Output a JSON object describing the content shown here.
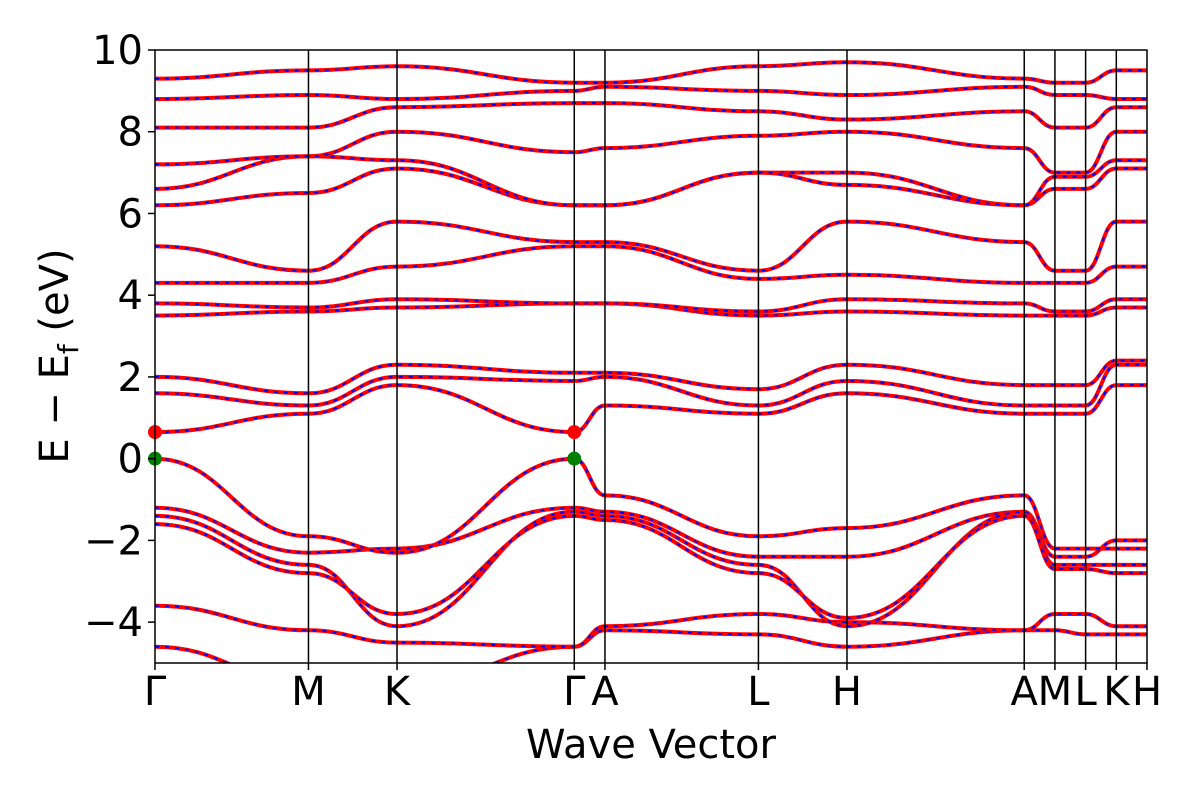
{
  "chart_data": {
    "type": "line",
    "title": "",
    "xlabel": "Wave Vector",
    "ylabel_main": "E − E",
    "ylabel_sub": "f",
    "ylabel_unit": "(eV)",
    "ylim": [
      -5,
      10
    ],
    "yticks": [
      -4,
      -2,
      0,
      2,
      4,
      6,
      8,
      10
    ],
    "ytick_labels": [
      "−4",
      "−2",
      "0",
      "2",
      "4",
      "6",
      "8",
      "10"
    ],
    "kpath": [
      {
        "label": "Γ",
        "x": 0.0
      },
      {
        "label": "M",
        "x": 1.0
      },
      {
        "label": "K",
        "x": 1.577
      },
      {
        "label": "Γ",
        "x": 2.732
      },
      {
        "label": "A",
        "x": 2.932
      },
      {
        "label": "L",
        "x": 3.932
      },
      {
        "label": "H",
        "x": 4.509
      },
      {
        "label": "A",
        "x": 5.664
      },
      {
        "label": "M",
        "x": 5.864
      },
      {
        "label": "L",
        "x": 6.064
      },
      {
        "label": "K",
        "x": 6.264
      },
      {
        "label": "H",
        "x": 6.464
      }
    ],
    "xlim": [
      0.0,
      6.464
    ],
    "series_colors": {
      "spin_up": "#ff0000",
      "spin_down": "#0000ff"
    },
    "grid": false,
    "vbm": {
      "energy": 0.0,
      "color": "#008000",
      "x": [
        0.0,
        2.732
      ]
    },
    "cbm": {
      "energy": 0.65,
      "color": "#ff0000",
      "x": [
        0.0,
        2.732
      ]
    },
    "bands": [
      {
        "x": [
          0.0,
          1.0,
          1.577,
          2.732,
          2.932,
          3.932,
          4.509,
          5.664,
          5.864,
          6.064,
          6.264,
          6.464
        ],
        "y": [
          -4.6,
          -5.5,
          -5.6,
          -4.6,
          -4.2,
          -4.3,
          -4.6,
          -4.2,
          -4.2,
          -4.3,
          -4.3,
          -4.3
        ]
      },
      {
        "x": [
          0.0,
          1.0,
          1.577,
          2.732,
          2.932,
          3.932,
          4.509,
          5.664,
          5.864,
          6.064,
          6.264,
          6.464
        ],
        "y": [
          -3.6,
          -4.2,
          -4.5,
          -4.6,
          -4.1,
          -3.8,
          -4.0,
          -4.2,
          -3.8,
          -3.8,
          -4.1,
          -4.1
        ]
      },
      {
        "x": [
          0.0,
          1.0,
          1.577,
          2.732,
          2.932,
          3.932,
          4.509,
          5.664,
          5.864,
          6.064,
          6.264,
          6.464
        ],
        "y": [
          -1.2,
          -2.3,
          -2.2,
          -1.2,
          -1.3,
          -2.4,
          -2.4,
          -1.3,
          -2.4,
          -2.4,
          -2.0,
          -2.0
        ]
      },
      {
        "x": [
          0.0,
          1.0,
          1.577,
          2.732,
          2.932,
          3.932,
          4.509,
          5.664,
          5.864,
          6.064,
          6.264,
          6.464
        ],
        "y": [
          -1.4,
          -2.6,
          -4.1,
          -1.3,
          -1.4,
          -2.6,
          -4.1,
          -1.3,
          -2.6,
          -2.6,
          -2.6,
          -2.6
        ]
      },
      {
        "x": [
          0.0,
          1.0,
          1.577,
          2.732,
          2.932,
          3.932,
          4.509,
          5.664,
          5.864,
          6.064,
          6.264,
          6.464
        ],
        "y": [
          -1.6,
          -2.8,
          -3.8,
          -1.4,
          -1.5,
          -2.8,
          -3.9,
          -1.4,
          -2.7,
          -2.7,
          -2.8,
          -2.8
        ]
      },
      {
        "x": [
          0.0,
          1.0,
          1.577,
          2.732,
          2.932,
          3.932,
          4.509,
          5.664,
          5.864,
          6.064,
          6.264,
          6.464
        ],
        "y": [
          0.0,
          -1.9,
          -2.3,
          0.0,
          -0.9,
          -1.9,
          -1.7,
          -0.9,
          -2.2,
          -2.2,
          -2.2,
          -2.2
        ]
      },
      {
        "x": [
          0.0,
          1.0,
          1.577,
          2.732,
          2.932,
          3.932,
          4.509,
          5.664,
          5.864,
          6.064,
          6.264,
          6.464
        ],
        "y": [
          0.65,
          1.1,
          1.8,
          0.65,
          1.3,
          1.1,
          1.6,
          1.1,
          1.1,
          1.1,
          1.8,
          1.8
        ]
      },
      {
        "x": [
          0.0,
          1.0,
          1.577,
          2.732,
          2.932,
          3.932,
          4.509,
          5.664,
          5.864,
          6.064,
          6.264,
          6.464
        ],
        "y": [
          1.6,
          1.3,
          2.0,
          1.9,
          2.0,
          1.3,
          1.9,
          1.3,
          1.3,
          1.3,
          2.3,
          2.3
        ]
      },
      {
        "x": [
          0.0,
          1.0,
          1.577,
          2.732,
          2.932,
          3.932,
          4.509,
          5.664,
          5.864,
          6.064,
          6.264,
          6.464
        ],
        "y": [
          2.0,
          1.6,
          2.3,
          2.1,
          2.1,
          1.7,
          2.3,
          1.8,
          1.8,
          1.8,
          2.4,
          2.4
        ]
      },
      {
        "x": [
          0.0,
          1.0,
          1.577,
          2.732,
          2.932,
          3.932,
          4.509,
          5.664,
          5.864,
          6.064,
          6.264,
          6.464
        ],
        "y": [
          3.5,
          3.6,
          3.7,
          3.8,
          3.8,
          3.5,
          3.6,
          3.5,
          3.5,
          3.5,
          3.7,
          3.7
        ]
      },
      {
        "x": [
          0.0,
          1.0,
          1.577,
          2.732,
          2.932,
          3.932,
          4.509,
          5.664,
          5.864,
          6.064,
          6.264,
          6.464
        ],
        "y": [
          3.8,
          3.7,
          3.9,
          3.8,
          3.8,
          3.6,
          3.9,
          3.8,
          3.6,
          3.6,
          3.9,
          3.9
        ]
      },
      {
        "x": [
          0.0,
          1.0,
          1.577,
          2.732,
          2.932,
          3.932,
          4.509,
          5.664,
          5.864,
          6.064,
          6.264,
          6.464
        ],
        "y": [
          4.3,
          4.3,
          4.7,
          5.2,
          5.2,
          4.4,
          4.5,
          4.3,
          4.3,
          4.3,
          4.7,
          4.7
        ]
      },
      {
        "x": [
          0.0,
          1.0,
          1.577,
          2.732,
          2.932,
          3.932,
          4.509,
          5.664,
          5.864,
          6.064,
          6.264,
          6.464
        ],
        "y": [
          5.2,
          4.6,
          5.8,
          5.3,
          5.3,
          4.6,
          5.8,
          5.3,
          4.6,
          4.6,
          5.8,
          5.8
        ]
      },
      {
        "x": [
          0.0,
          1.0,
          1.577,
          2.732,
          2.932,
          3.932,
          4.509,
          5.664,
          5.864,
          6.064,
          6.264,
          6.464
        ],
        "y": [
          6.2,
          6.5,
          7.1,
          6.2,
          6.2,
          7.0,
          7.0,
          6.2,
          6.6,
          6.6,
          7.1,
          7.1
        ]
      },
      {
        "x": [
          0.0,
          1.0,
          1.577,
          2.732,
          2.932,
          3.932,
          4.509,
          5.664,
          5.864,
          6.064,
          6.264,
          6.464
        ],
        "y": [
          6.6,
          7.4,
          7.3,
          6.2,
          6.2,
          7.0,
          6.7,
          6.2,
          6.9,
          6.9,
          7.3,
          7.3
        ]
      },
      {
        "x": [
          0.0,
          1.0,
          1.577,
          2.732,
          2.932,
          3.932,
          4.509,
          5.664,
          5.864,
          6.064,
          6.264,
          6.464
        ],
        "y": [
          7.2,
          7.4,
          8.0,
          7.5,
          7.6,
          7.9,
          8.0,
          7.6,
          7.0,
          7.0,
          8.0,
          8.0
        ]
      },
      {
        "x": [
          0.0,
          1.0,
          1.577,
          2.732,
          2.932,
          3.932,
          4.509,
          5.664,
          5.864,
          6.064,
          6.264,
          6.464
        ],
        "y": [
          8.1,
          8.1,
          8.6,
          8.7,
          8.7,
          8.5,
          8.3,
          8.5,
          8.1,
          8.1,
          8.6,
          8.6
        ]
      },
      {
        "x": [
          0.0,
          1.0,
          1.577,
          2.732,
          2.932,
          3.932,
          4.509,
          5.664,
          5.864,
          6.064,
          6.264,
          6.464
        ],
        "y": [
          8.8,
          8.9,
          8.8,
          9.0,
          9.1,
          9.0,
          8.9,
          9.1,
          8.9,
          8.9,
          8.8,
          8.8
        ]
      },
      {
        "x": [
          0.0,
          1.0,
          1.577,
          2.732,
          2.932,
          3.932,
          4.509,
          5.664,
          5.864,
          6.064,
          6.264,
          6.464
        ],
        "y": [
          9.3,
          9.5,
          9.6,
          9.2,
          9.2,
          9.6,
          9.7,
          9.3,
          9.2,
          9.2,
          9.5,
          9.5
        ]
      }
    ]
  }
}
